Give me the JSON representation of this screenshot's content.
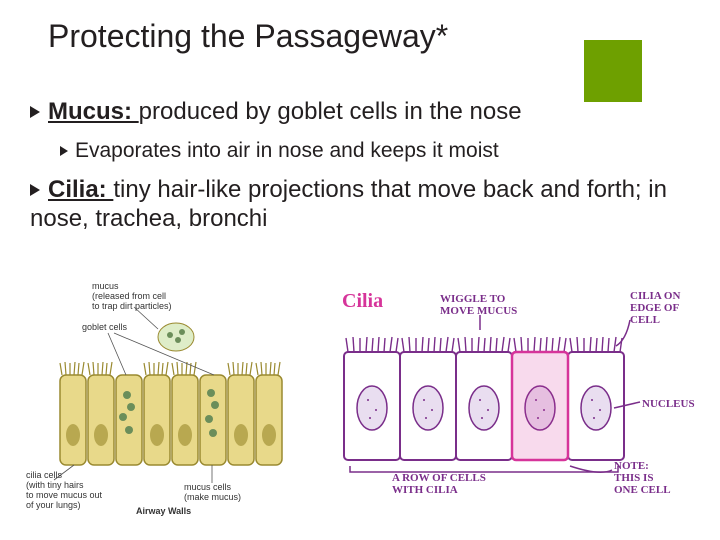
{
  "title": "Protecting the Passageway*",
  "accent_color": "#6ea000",
  "bullets": {
    "mucus_term": "Mucus: ",
    "mucus_rest": "produced by goblet cells in the nose",
    "mucus_sub": "Evaporates into air in nose and keeps it moist",
    "cilia_term": "Cilia: ",
    "cilia_rest": "tiny hair-like projections that move back and forth; in nose, trachea, bronchi"
  },
  "leftDiagram": {
    "label_mucus": "mucus\n(released from cell\nto trap dirt particles)",
    "label_goblet": "goblet cells",
    "label_cilia_cells": "cilia cells\n(with tiny hairs\nto move mucus out\nof your lungs)",
    "label_mucus_cells": "mucus cells\n(make mucus)",
    "caption": "Airway Walls",
    "cell_body_color": "#e8d98a",
    "cell_outline": "#9a8a30",
    "particle_color": "#6b8e5a",
    "cilia_color": "#9a8a30",
    "nucleus_color": "#b8a850"
  },
  "rightDiagram": {
    "title": "Cilia",
    "label_wiggle": "WIGGLE TO\nMOVE MUCUS",
    "label_edge": "CILIA ON\nEDGE OF\nCELL",
    "label_nucleus": "NUCLEUS",
    "label_row": "A ROW OF CELLS\nWITH CILIA",
    "label_note": "NOTE:\nTHIS IS\nONE CELL",
    "cell_outline": "#7a2e8a",
    "cilia_color": "#7a2e8a",
    "nucleus_fill": "#bda0c7",
    "title_color": "#d6349a"
  }
}
